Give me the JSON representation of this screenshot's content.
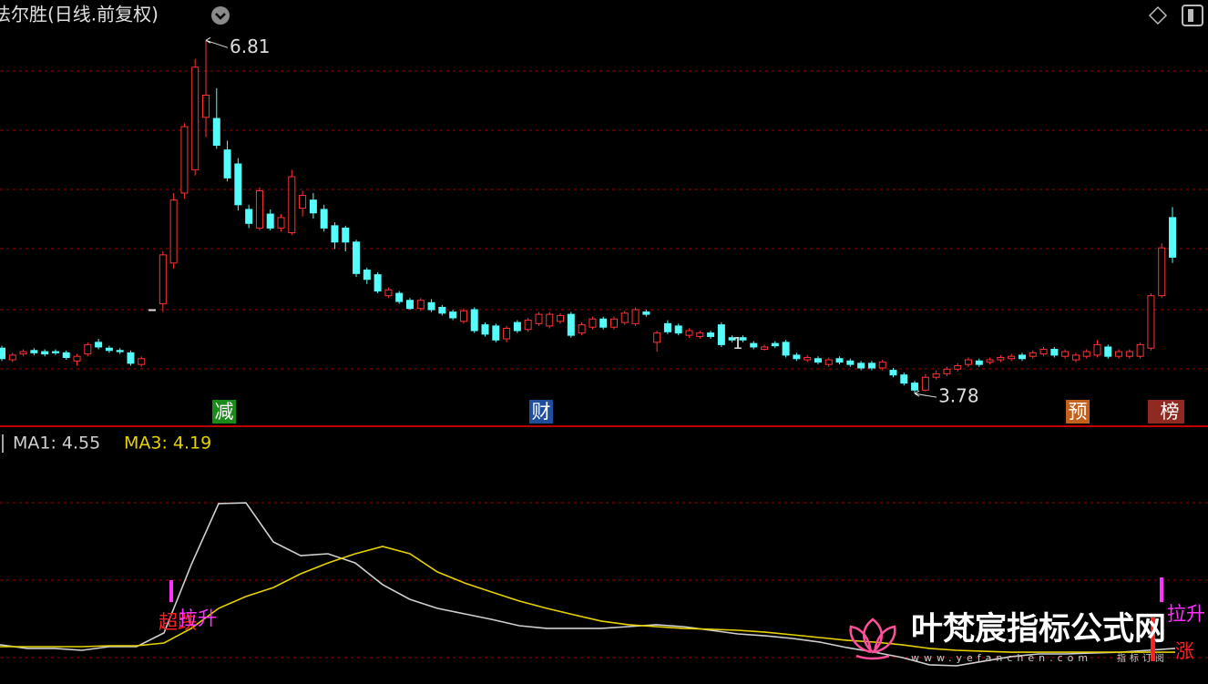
{
  "chart_data": [
    {
      "type": "candlestick",
      "title": "法尔胜(日线.前复权)",
      "up_color": "#ff3232",
      "down_color": "#54fcfc",
      "ylim": [
        3.5,
        7.0
      ],
      "annotations": {
        "high": 6.81,
        "low": 3.78,
        "marker": "1"
      },
      "events": [
        "减",
        "财",
        "预",
        "榜"
      ],
      "ohlc": [
        [
          4.17,
          4.19,
          4.06,
          4.08
        ],
        [
          4.07,
          4.13,
          4.05,
          4.11
        ],
        [
          4.12,
          4.16,
          4.1,
          4.14
        ],
        [
          4.15,
          4.17,
          4.11,
          4.13
        ],
        [
          4.14,
          4.16,
          4.1,
          4.12
        ],
        [
          4.14,
          4.16,
          4.11,
          4.13
        ],
        [
          4.13,
          4.15,
          4.07,
          4.09
        ],
        [
          4.06,
          4.12,
          4.02,
          4.1
        ],
        [
          4.12,
          4.22,
          4.1,
          4.2
        ],
        [
          4.22,
          4.25,
          4.16,
          4.18
        ],
        [
          4.17,
          4.19,
          4.13,
          4.15
        ],
        [
          4.15,
          4.17,
          4.12,
          4.14
        ],
        [
          4.13,
          4.15,
          4.02,
          4.04
        ],
        [
          4.03,
          4.1,
          4.01,
          4.08
        ],
        [
          4.5,
          4.5,
          4.5,
          4.5
        ],
        [
          4.55,
          5.0,
          4.48,
          4.97
        ],
        [
          4.9,
          5.5,
          4.85,
          5.44
        ],
        [
          5.5,
          6.1,
          5.45,
          6.07
        ],
        [
          5.7,
          6.65,
          5.65,
          6.58
        ],
        [
          6.15,
          6.81,
          5.98,
          6.34
        ],
        [
          6.14,
          6.4,
          5.88,
          5.91
        ],
        [
          5.87,
          5.95,
          5.6,
          5.63
        ],
        [
          5.75,
          5.8,
          5.35,
          5.4
        ],
        [
          5.36,
          5.4,
          5.2,
          5.24
        ],
        [
          5.2,
          5.55,
          5.18,
          5.52
        ],
        [
          5.32,
          5.36,
          5.18,
          5.2
        ],
        [
          5.2,
          5.32,
          5.17,
          5.29
        ],
        [
          5.16,
          5.7,
          5.14,
          5.64
        ],
        [
          5.37,
          5.52,
          5.3,
          5.48
        ],
        [
          5.44,
          5.5,
          5.28,
          5.33
        ],
        [
          5.36,
          5.4,
          5.17,
          5.2
        ],
        [
          5.22,
          5.25,
          5.02,
          5.08
        ],
        [
          5.2,
          5.22,
          5.0,
          5.08
        ],
        [
          5.08,
          5.1,
          4.78,
          4.81
        ],
        [
          4.84,
          4.86,
          4.72,
          4.76
        ],
        [
          4.8,
          4.82,
          4.64,
          4.66
        ],
        [
          4.62,
          4.69,
          4.6,
          4.67
        ],
        [
          4.64,
          4.66,
          4.55,
          4.57
        ],
        [
          4.58,
          4.6,
          4.5,
          4.51
        ],
        [
          4.51,
          4.6,
          4.49,
          4.58
        ],
        [
          4.56,
          4.59,
          4.48,
          4.5
        ],
        [
          4.52,
          4.54,
          4.45,
          4.47
        ],
        [
          4.48,
          4.5,
          4.41,
          4.43
        ],
        [
          4.4,
          4.51,
          4.38,
          4.49
        ],
        [
          4.5,
          4.52,
          4.3,
          4.32
        ],
        [
          4.37,
          4.39,
          4.27,
          4.29
        ],
        [
          4.36,
          4.38,
          4.22,
          4.24
        ],
        [
          4.25,
          4.36,
          4.22,
          4.34
        ],
        [
          4.39,
          4.41,
          4.3,
          4.32
        ],
        [
          4.33,
          4.43,
          4.31,
          4.41
        ],
        [
          4.38,
          4.48,
          4.36,
          4.46
        ],
        [
          4.36,
          4.48,
          4.34,
          4.46
        ],
        [
          4.4,
          4.47,
          4.38,
          4.45
        ],
        [
          4.46,
          4.48,
          4.26,
          4.28
        ],
        [
          4.3,
          4.39,
          4.28,
          4.37
        ],
        [
          4.35,
          4.44,
          4.33,
          4.42
        ],
        [
          4.42,
          4.44,
          4.33,
          4.35
        ],
        [
          4.35,
          4.44,
          4.33,
          4.42
        ],
        [
          4.39,
          4.49,
          4.37,
          4.47
        ],
        [
          4.38,
          4.52,
          4.36,
          4.5
        ],
        [
          4.48,
          4.5,
          4.44,
          4.46
        ],
        [
          4.22,
          4.32,
          4.14,
          4.3
        ],
        [
          4.38,
          4.41,
          4.29,
          4.31
        ],
        [
          4.36,
          4.38,
          4.28,
          4.3
        ],
        [
          4.28,
          4.34,
          4.26,
          4.32
        ],
        [
          4.27,
          4.32,
          4.25,
          4.3
        ],
        [
          4.3,
          4.32,
          4.25,
          4.27
        ],
        [
          4.37,
          4.39,
          4.18,
          4.2
        ],
        [
          4.26,
          4.28,
          4.22,
          4.24
        ],
        [
          4.26,
          4.28,
          4.22,
          4.24
        ],
        [
          4.21,
          4.23,
          4.16,
          4.18
        ],
        [
          4.16,
          4.2,
          4.15,
          4.18
        ],
        [
          4.21,
          4.23,
          4.17,
          4.19
        ],
        [
          4.22,
          4.24,
          4.09,
          4.11
        ],
        [
          4.11,
          4.13,
          4.06,
          4.08
        ],
        [
          4.07,
          4.11,
          4.05,
          4.09
        ],
        [
          4.08,
          4.1,
          4.03,
          4.05
        ],
        [
          4.03,
          4.09,
          4.01,
          4.07
        ],
        [
          4.08,
          4.1,
          4.03,
          4.05
        ],
        [
          4.06,
          4.08,
          4.01,
          4.03
        ],
        [
          4.04,
          4.06,
          3.98,
          4.0
        ],
        [
          4.04,
          4.06,
          3.98,
          4.0
        ],
        [
          4.0,
          4.07,
          3.98,
          4.05
        ],
        [
          3.98,
          4.0,
          3.92,
          3.94
        ],
        [
          3.94,
          3.96,
          3.85,
          3.87
        ],
        [
          3.87,
          3.89,
          3.78,
          3.81
        ],
        [
          3.81,
          3.95,
          3.8,
          3.92
        ],
        [
          3.92,
          3.98,
          3.9,
          3.95
        ],
        [
          3.95,
          4.01,
          3.93,
          3.99
        ],
        [
          3.99,
          4.04,
          3.97,
          4.02
        ],
        [
          4.03,
          4.09,
          4.01,
          4.07
        ],
        [
          4.06,
          4.08,
          4.01,
          4.03
        ],
        [
          4.05,
          4.09,
          4.03,
          4.07
        ],
        [
          4.07,
          4.11,
          4.05,
          4.09
        ],
        [
          4.08,
          4.12,
          4.06,
          4.1
        ],
        [
          4.11,
          4.13,
          4.06,
          4.08
        ],
        [
          4.1,
          4.15,
          4.08,
          4.13
        ],
        [
          4.12,
          4.18,
          4.1,
          4.16
        ],
        [
          4.16,
          4.18,
          4.09,
          4.11
        ],
        [
          4.1,
          4.16,
          4.08,
          4.14
        ],
        [
          4.07,
          4.13,
          4.05,
          4.11
        ],
        [
          4.1,
          4.16,
          4.08,
          4.14
        ],
        [
          4.11,
          4.24,
          4.09,
          4.2
        ],
        [
          4.18,
          4.2,
          4.08,
          4.1
        ],
        [
          4.1,
          4.16,
          4.08,
          4.14
        ],
        [
          4.1,
          4.16,
          4.08,
          4.14
        ],
        [
          4.1,
          4.22,
          4.08,
          4.2
        ],
        [
          4.17,
          4.64,
          4.15,
          4.62
        ],
        [
          4.62,
          5.07,
          4.6,
          5.03
        ],
        [
          5.29,
          5.38,
          4.9,
          4.95
        ]
      ]
    },
    {
      "type": "line",
      "ylim": [
        0,
        10
      ],
      "series": [
        {
          "name": "MA1: 4.55",
          "color": "#d0d0d0",
          "values": [
            1.4,
            1.25,
            1.25,
            1.17,
            1.32,
            1.32,
            1.89,
            4.72,
            7.25,
            7.28,
            5.66,
            5.09,
            5.17,
            4.79,
            3.89,
            3.28,
            2.91,
            2.68,
            2.45,
            2.19,
            2.08,
            2.08,
            2.08,
            2.15,
            2.23,
            2.15,
            2.0,
            1.85,
            1.77,
            1.66,
            1.51,
            1.28,
            1.09,
            0.87,
            0.57,
            0.53,
            0.72,
            0.91,
            1.02,
            1.02,
            1.06,
            1.09,
            1.17,
            1.25
          ]
        },
        {
          "name": "MA3: 4.19",
          "color": "#e6d200",
          "values": [
            1.32,
            1.32,
            1.32,
            1.32,
            1.36,
            1.36,
            1.47,
            2.08,
            2.91,
            3.4,
            3.77,
            4.34,
            4.79,
            5.17,
            5.47,
            5.17,
            4.42,
            3.96,
            3.58,
            3.21,
            2.91,
            2.64,
            2.38,
            2.23,
            2.15,
            2.08,
            2.04,
            2.0,
            1.92,
            1.81,
            1.7,
            1.58,
            1.51,
            1.4,
            1.25,
            1.17,
            1.13,
            1.09,
            1.09,
            1.09,
            1.09,
            1.09,
            1.09,
            1.09
          ]
        }
      ],
      "signals": {
        "left": [
          "超跌",
          "拉升"
        ],
        "right": [
          "拉升",
          "涨"
        ]
      }
    },
    {
      "watermark": {
        "name": "叶梵宸指标公式网",
        "url": "www.yefanchen.com",
        "tag": "指标订阅"
      }
    }
  ]
}
